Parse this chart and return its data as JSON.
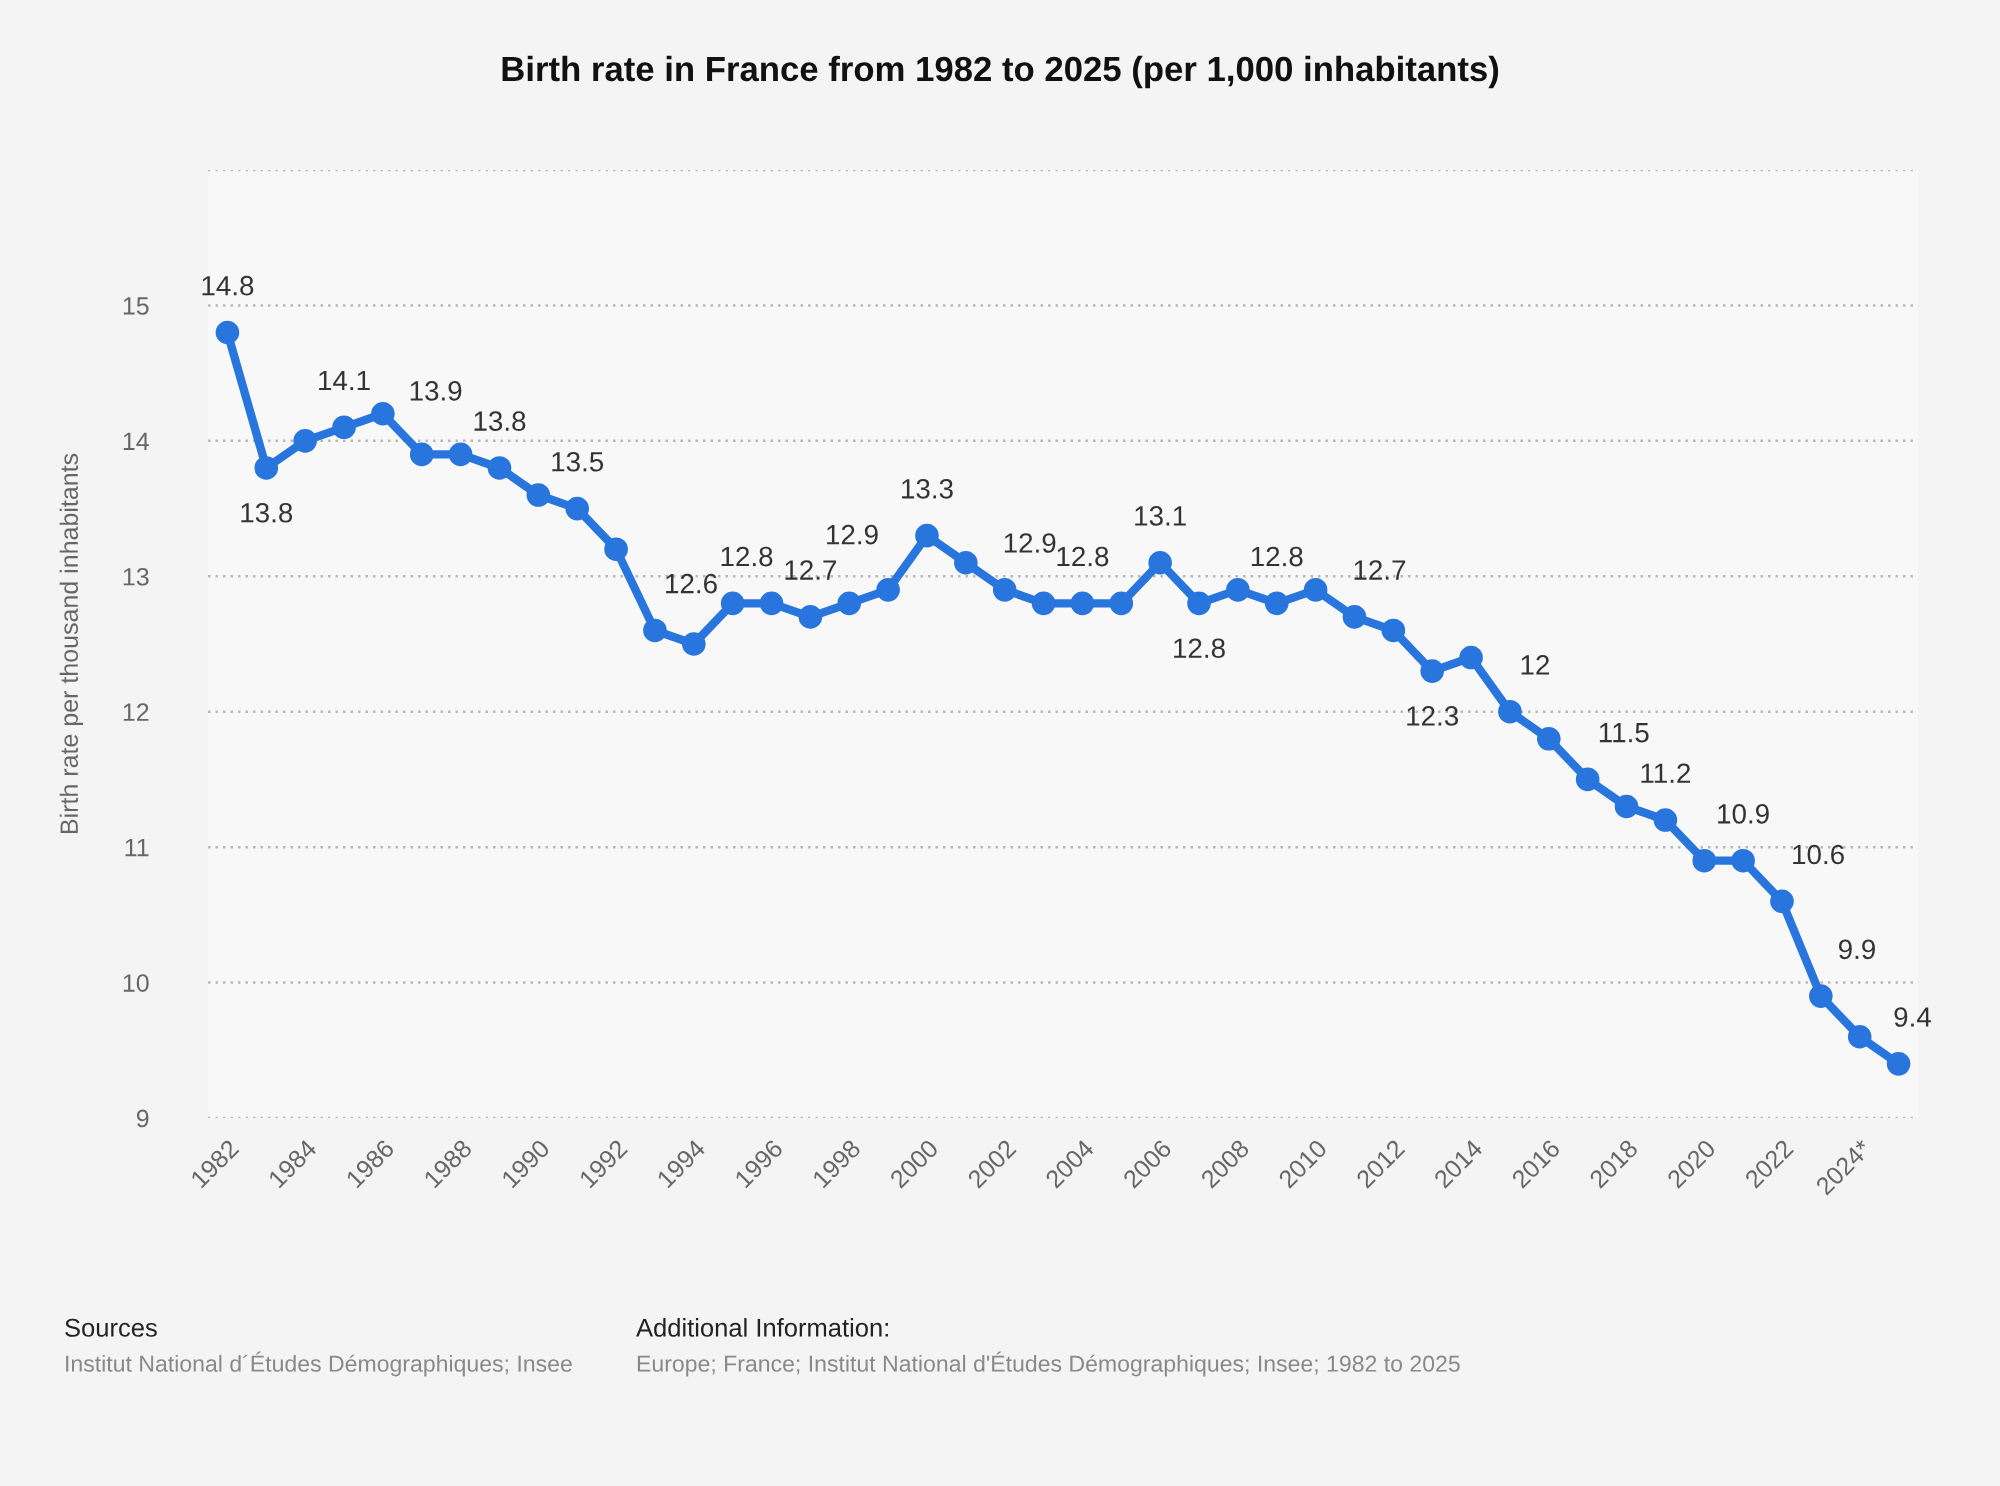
{
  "chart_data": {
    "type": "line",
    "title": "Birth rate in France from 1982 to 2025 (per 1,000 inhabitants)",
    "ylabel": "Birth rate per thousand inhabitants",
    "categories": [
      "1982",
      null,
      "1984",
      null,
      "1986",
      null,
      "1988",
      null,
      "1990",
      null,
      "1992",
      null,
      "1994",
      null,
      "1996",
      null,
      "1998",
      null,
      "2000",
      null,
      "2002",
      null,
      "2004",
      null,
      "2006",
      null,
      "2008",
      null,
      "2010",
      null,
      "2012",
      null,
      "2014",
      null,
      "2016",
      null,
      "2018",
      null,
      "2020",
      null,
      "2022",
      null,
      "2024*",
      null
    ],
    "series": [
      {
        "color": "#2876dd",
        "values": [
          14.8,
          13.8,
          14.0,
          14.1,
          14.2,
          13.9,
          13.9,
          13.8,
          13.6,
          13.5,
          13.2,
          12.6,
          12.5,
          12.8,
          12.8,
          12.7,
          12.8,
          12.9,
          13.3,
          13.1,
          12.9,
          12.8,
          12.8,
          12.8,
          13.1,
          12.8,
          12.9,
          12.8,
          12.9,
          12.7,
          12.6,
          12.3,
          12.4,
          12.0,
          11.8,
          11.5,
          11.3,
          11.2,
          10.9,
          10.9,
          10.6,
          9.9,
          9.6,
          9.4
        ],
        "value_labels": [
          "14.8",
          "13.8",
          null,
          "14.1",
          null,
          "13.9",
          null,
          "13.8",
          null,
          "13.5",
          null,
          "12.6",
          null,
          "12.8",
          null,
          "12.7",
          null,
          "12.9",
          "13.3",
          null,
          "12.9",
          null,
          "12.8",
          null,
          "13.1",
          "12.8",
          null,
          "12.8",
          null,
          "12.7",
          null,
          "12.3",
          null,
          "12",
          null,
          "11.5",
          null,
          "11.2",
          null,
          "10.9",
          "10.6",
          "9.9",
          null,
          "9.4"
        ]
      }
    ],
    "ylim": [
      9,
      16
    ],
    "yticks": [
      9,
      10,
      11,
      12,
      13,
      14,
      15,
      {
        "value": 16,
        "label": null
      }
    ],
    "grid": "y",
    "marker": "circle",
    "line_style": "solid",
    "annotations": [
      "Sources",
      "Institut National d´Études Démographiques; Insee",
      "Additional Information:",
      "Europe; France; Institut National d'Études Démographiques; Insee; 1982 to 2025"
    ]
  }
}
